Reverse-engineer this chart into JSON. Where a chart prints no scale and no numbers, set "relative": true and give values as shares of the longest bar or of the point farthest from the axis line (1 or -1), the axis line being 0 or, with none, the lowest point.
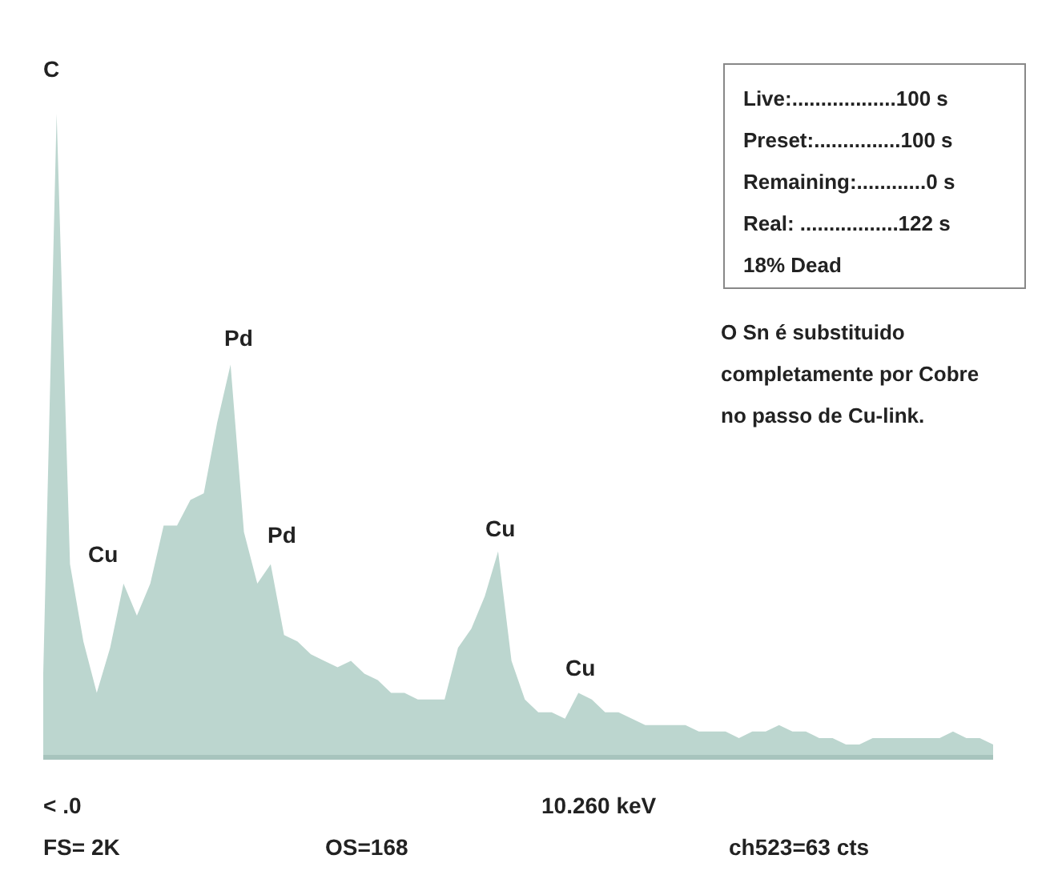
{
  "chart_data": {
    "type": "area",
    "relative": true,
    "color": "#bcd6cf",
    "categories": [
      null,
      null,
      null,
      null,
      null,
      null,
      null,
      null,
      null,
      null,
      null,
      null,
      null,
      null,
      null,
      null,
      null,
      null,
      null,
      null,
      null,
      null,
      null,
      null,
      null,
      null,
      null,
      null,
      null,
      null,
      null,
      null,
      null,
      null,
      null,
      null,
      null,
      null,
      null,
      null,
      null,
      null,
      null,
      null,
      null,
      null,
      null,
      null,
      null,
      null,
      null,
      null,
      null,
      null,
      null,
      null,
      null,
      null,
      null,
      null,
      null,
      null,
      null,
      null,
      null,
      null,
      null,
      null,
      null,
      null,
      null,
      null
    ],
    "values": [
      0.13,
      1.0,
      0.3,
      0.18,
      0.1,
      0.17,
      0.27,
      0.22,
      0.27,
      0.36,
      0.36,
      0.4,
      0.41,
      0.52,
      0.61,
      0.35,
      0.27,
      0.3,
      0.19,
      0.18,
      0.16,
      0.15,
      0.14,
      0.15,
      0.13,
      0.12,
      0.1,
      0.1,
      0.09,
      0.09,
      0.09,
      0.17,
      0.2,
      0.25,
      0.32,
      0.15,
      0.09,
      0.07,
      0.07,
      0.06,
      0.1,
      0.09,
      0.07,
      0.07,
      0.06,
      0.05,
      0.05,
      0.05,
      0.05,
      0.04,
      0.04,
      0.04,
      0.03,
      0.04,
      0.04,
      0.05,
      0.04,
      0.04,
      0.03,
      0.03,
      0.02,
      0.02,
      0.03,
      0.03,
      0.03,
      0.03,
      0.03,
      0.03,
      0.04,
      0.03,
      0.03,
      0.02
    ],
    "annotations": [
      "C",
      "Cu",
      "Pd",
      "Pd",
      "Cu",
      "Cu",
      "Live:..................100 s",
      "Preset:...............100 s",
      "Remaining:............0 s",
      "Real: .................122 s",
      "18% Dead",
      "O Sn é substituido completamente por Cobre no passo de Cu-link.",
      "< .0",
      "10.260 keV",
      "FS= 2K",
      "OS=168",
      "ch523=63 cts"
    ]
  }
}
